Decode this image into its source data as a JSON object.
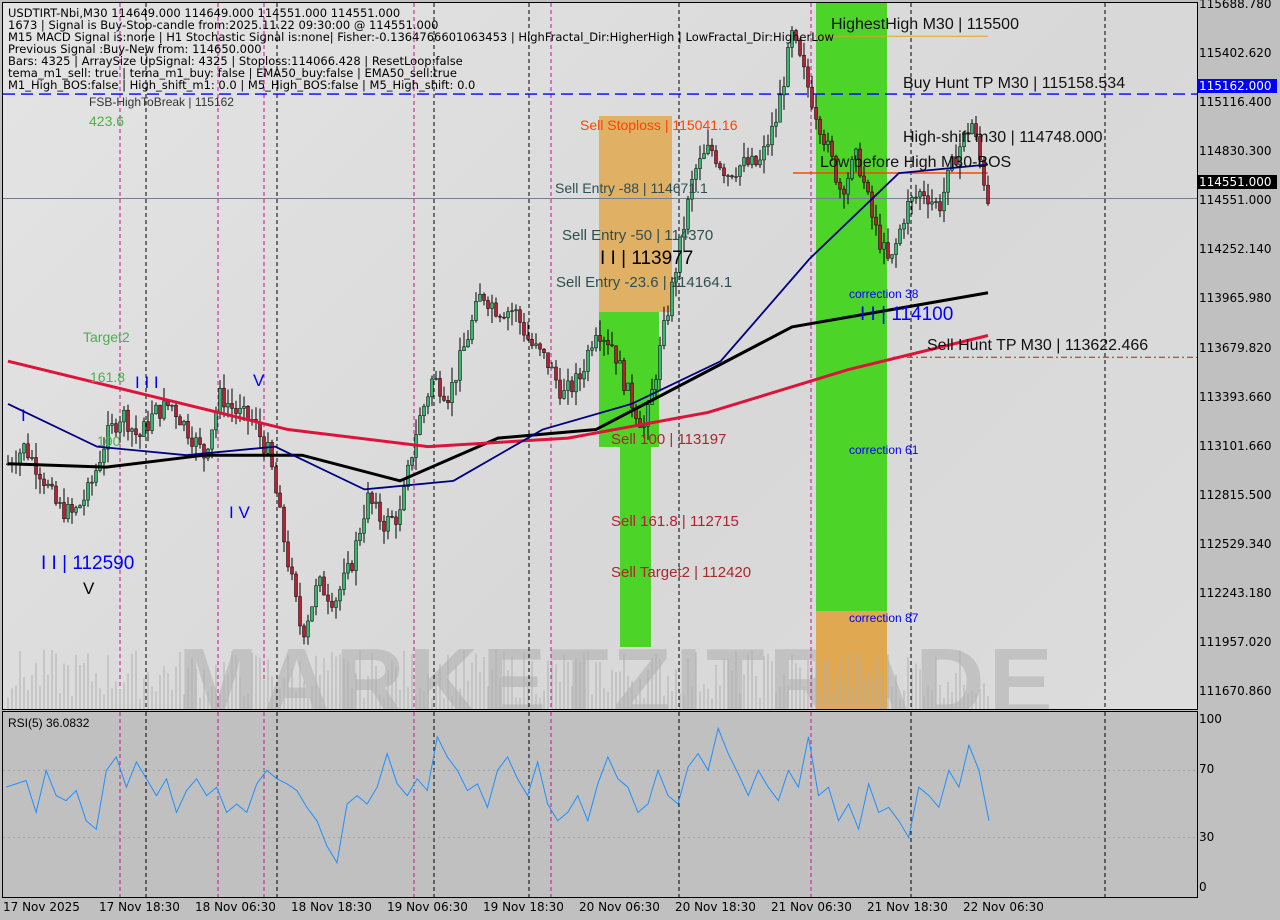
{
  "header": {
    "lines": [
      "USDTIRT-Nbi,M30  114649.000 114649.000 114551.000 114551.000",
      "1673 | Signal is Buy-Stop-candle from:2025.11.22 09:30:00 @ 114551.000",
      "M15 MACD Signal is:none | H1 Stochastic Signal is:none| Fisher:-0.1364766601063453 | HighFractal_Dir:HigherHigh | LowFractal_Dir:HigherLow",
      "Previous Signal :Buy-New from: 114650.000",
      "Bars: 4325 | ArraySize UpSignal: 4325 | Stoploss:114066.428 | ResetLoop:false",
      "tema_m1_sell: true | tema_m1_buy: false | EMA50_buy:false | EMA50_sell:true",
      "M1_High_BOS:false | High_shift_m1: 0.0 | M5_High_BOS:false | M5_High_shift: 0.0"
    ],
    "overlap": "FSB-HighToBreak | 115162"
  },
  "watermark": "MARKETZITRADE",
  "labels": {
    "fib_423": "423.6",
    "target2": "Target2",
    "fib_161": "161.8",
    "fib_100": "100",
    "wave_i": "I",
    "wave_iii": "I I I",
    "wave_iv": "I V",
    "wave_v": "V",
    "wave_ii": "I I | 112590",
    "wave_v2": "V",
    "sell_stoploss": "Sell Stoploss | 115041.16",
    "sell_entry_88": "Sell Entry -88 | 114671.1",
    "sell_entry_50": "Sell Entry -50 | 114370",
    "iii_113977": "I I | 113977",
    "sell_entry_23": "Sell Entry -23.6 | 114164.1",
    "sell_100": "Sell 100 | 113197",
    "sell_161": "Sell 161.8 | 112715",
    "sell_target2": "Sell Target2 | 112420",
    "highest_high": "HighestHigh   M30 | 115500",
    "buy_hunt": "Buy Hunt TP M30 | 115158.534",
    "high_shift": "High-shift m30 | 114748.000",
    "low_before": "Low before High   M30-BOS",
    "correction_38": "correction 38",
    "ii_114100": "I I | 114100",
    "sell_hunt": "Sell Hunt TP M30 | 113622.466",
    "correction_61": "correction 61",
    "correction_87": "correction 87"
  },
  "chart_data": [
    {
      "type": "candlestick",
      "symbol": "USDTIRT-Nbi",
      "timeframe": "M30",
      "ylim": [
        111670.86,
        115688.78
      ],
      "y_ticks": [
        "115688.780",
        "115402.620",
        "115116.400",
        "114830.300",
        "114551.000",
        "114252.140",
        "113965.980",
        "113679.820",
        "113393.660",
        "113101.660",
        "112815.500",
        "112529.340",
        "112243.180",
        "111957.020",
        "111670.860"
      ],
      "x_ticks": [
        "17 Nov 2025",
        "17 Nov 18:30",
        "18 Nov 06:30",
        "18 Nov 18:30",
        "19 Nov 06:30",
        "19 Nov 18:30",
        "20 Nov 06:30",
        "20 Nov 18:30",
        "21 Nov 06:30",
        "21 Nov 18:30",
        "22 Nov 06:30"
      ],
      "current_price": "114551.000",
      "fsb_price": "115162.000",
      "close_path": [
        113000,
        113100,
        112950,
        112750,
        112700,
        112850,
        113150,
        113300,
        113150,
        113300,
        113350,
        113200,
        113050,
        113400,
        113300,
        113250,
        113050,
        112500,
        112000,
        112300,
        112200,
        112400,
        112800,
        112650,
        112700,
        113200,
        113500,
        113400,
        113700,
        114000,
        113900,
        113900,
        113700,
        113600,
        113400,
        113500,
        113800,
        113700,
        113400,
        113200,
        113700,
        114200,
        114700,
        114850,
        114700,
        114750,
        114750,
        115000,
        115500,
        115200,
        114900,
        114600,
        114800,
        114400,
        114150,
        114500,
        114600,
        114500,
        114800,
        115000,
        114551
      ],
      "series": [
        {
          "color": "#000000",
          "values": [
            113000,
            112980,
            113050,
            113050,
            112900,
            113150,
            113200,
            113500,
            113800,
            113900,
            114000
          ]
        },
        {
          "color": "#dc143c",
          "values": [
            113600,
            113400,
            113200,
            113100,
            113150,
            113300,
            113550,
            113750
          ]
        },
        {
          "color": "#000080",
          "values": [
            113350,
            113100,
            113050,
            113100,
            112850,
            112900,
            113200,
            113350,
            113600,
            114200,
            114700,
            114750
          ]
        }
      ],
      "colors": {
        "bull": "#3cb371",
        "bear": "#b22234",
        "zone_green": "#4cd428",
        "zone_orange": "#e0a850"
      }
    },
    {
      "type": "line",
      "name": "RSI(5)",
      "value_label": "RSI(5) 36.0832",
      "ylim": [
        0,
        100
      ],
      "y_ticks": [
        "100",
        "70",
        "30",
        "0"
      ],
      "color": "#1e90ff",
      "values": [
        60,
        62,
        64,
        45,
        70,
        55,
        52,
        58,
        40,
        35,
        70,
        78,
        60,
        75,
        65,
        55,
        65,
        45,
        58,
        65,
        55,
        60,
        45,
        50,
        45,
        62,
        70,
        65,
        62,
        58,
        48,
        40,
        25,
        15,
        50,
        55,
        50,
        60,
        80,
        62,
        55,
        65,
        58,
        90,
        78,
        70,
        58,
        62,
        48,
        70,
        78,
        65,
        55,
        75,
        50,
        40,
        45,
        55,
        40,
        62,
        78,
        65,
        60,
        45,
        50,
        70,
        55,
        50,
        72,
        80,
        70,
        95,
        80,
        68,
        55,
        70,
        60,
        52,
        70,
        60,
        90,
        55,
        60,
        40,
        50,
        35,
        62,
        45,
        48,
        40,
        30,
        60,
        55,
        48,
        70,
        60,
        85,
        70,
        40
      ]
    }
  ]
}
